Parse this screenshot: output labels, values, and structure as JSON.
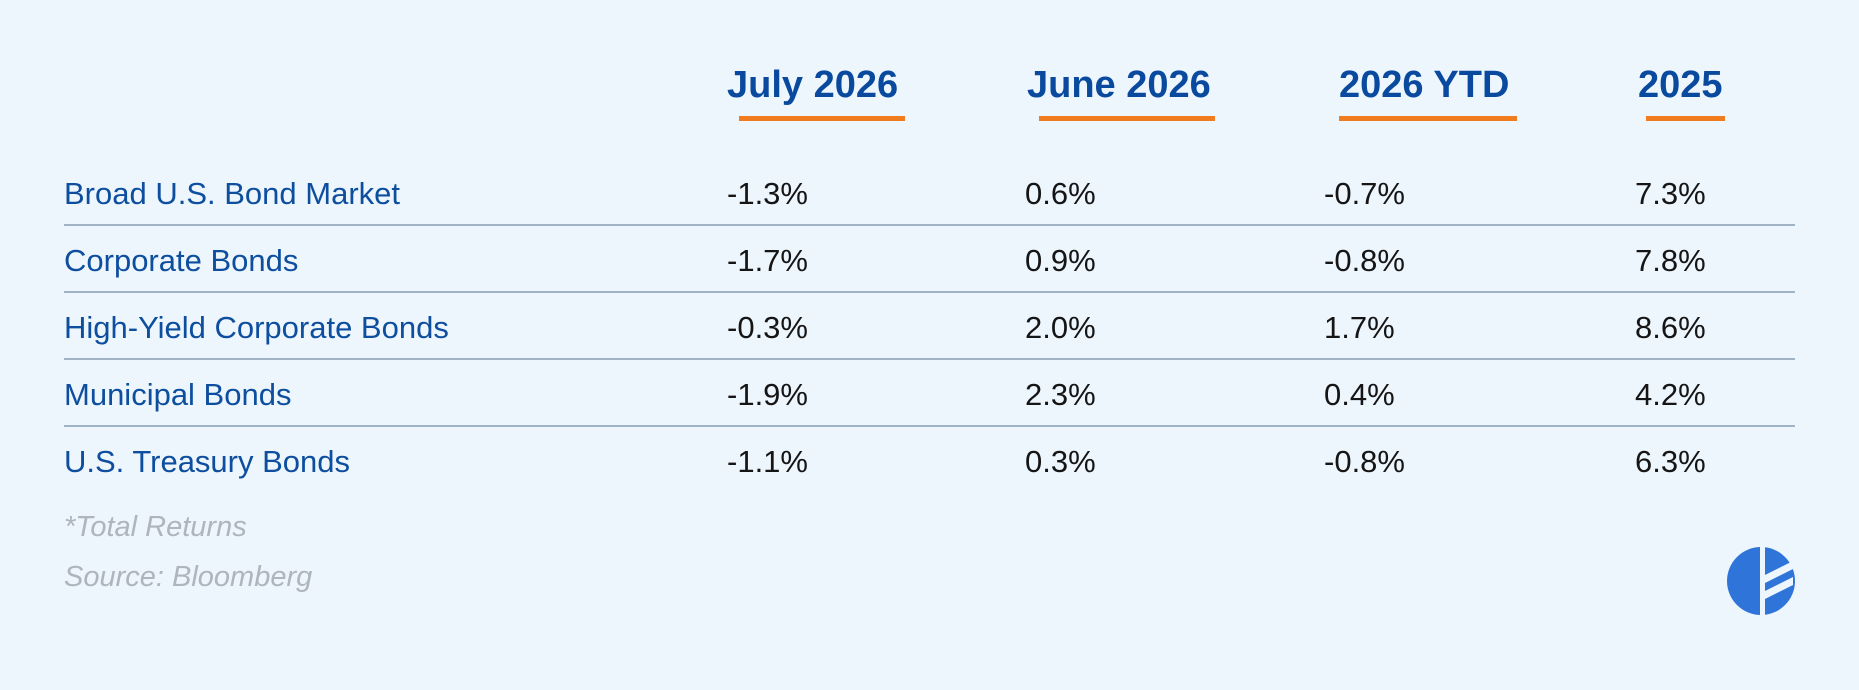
{
  "chart_data": {
    "type": "table",
    "columns": [
      "July 2026",
      "June 2026",
      "2026 YTD",
      "2025"
    ],
    "rows": [
      {
        "label": "Broad U.S. Bond Market",
        "values": [
          "-1.3%",
          "0.6%",
          "-0.7%",
          "7.3%"
        ]
      },
      {
        "label": "Corporate Bonds",
        "values": [
          "-1.7%",
          "0.9%",
          "-0.8%",
          "7.8%"
        ]
      },
      {
        "label": "High-Yield Corporate Bonds",
        "values": [
          "-0.3%",
          "2.0%",
          "1.7%",
          "8.6%"
        ]
      },
      {
        "label": "Municipal Bonds",
        "values": [
          "-1.9%",
          "2.3%",
          "0.4%",
          "4.2%"
        ]
      },
      {
        "label": "U.S. Treasury Bonds",
        "values": [
          "-1.1%",
          "0.3%",
          "-0.8%",
          "6.3%"
        ]
      }
    ],
    "footnote": "*Total Returns",
    "source": "Source: Bloomberg"
  },
  "colors": {
    "background": "#EDF5FD",
    "header_text": "#0A4A9E",
    "header_underline": "#F07C1E",
    "row_label": "#0D4E9E",
    "value_text": "#151515",
    "divider": "#9FB3C5",
    "footnote": "#AEB5BC",
    "logo": "#2F74D8"
  },
  "logo": {
    "icon": "brand-logo-icon"
  }
}
